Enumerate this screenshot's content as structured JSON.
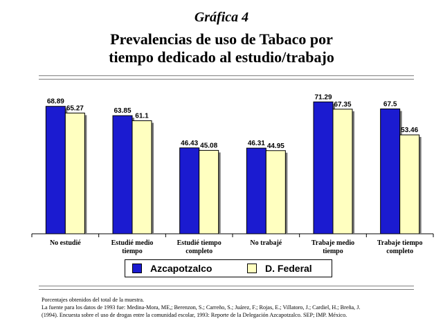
{
  "header": {
    "kicker": "Gráfica 4",
    "title_line1": "Prevalencias de uso de Tabaco por",
    "title_line2": "tiempo dedicado al estudio/trabajo"
  },
  "chart_data": {
    "type": "bar",
    "categories": [
      [
        "No estudié"
      ],
      [
        "Estudié medio",
        "tiempo"
      ],
      [
        "Estudié tiempo",
        "completo"
      ],
      [
        "No trabajé"
      ],
      [
        "Trabaje medio",
        "tiempo"
      ],
      [
        "Trabaje tiempo",
        "completo"
      ]
    ],
    "series": [
      {
        "name": "Azcapotzalco",
        "color": "#1b1bd0",
        "values": [
          68.89,
          63.85,
          46.43,
          46.31,
          71.29,
          67.5
        ],
        "labels": [
          "68.89",
          "63.85",
          "46.43",
          "46.31",
          "71.29",
          "67.5"
        ]
      },
      {
        "name": "D. Federal",
        "color": "#ffffc0",
        "values": [
          65.27,
          61.1,
          45.08,
          44.95,
          67.35,
          53.46
        ],
        "labels": [
          "65.27",
          "61.1",
          "45.08",
          "44.95",
          "67.35",
          "53.46"
        ]
      }
    ],
    "ylim": [
      0,
      80
    ],
    "grid": false,
    "legend_position": "bottom"
  },
  "notes": {
    "line1": "Porcentajes obtenidos del total de la muestra.",
    "line2": "La fuente para los datos de 1993 fue: Medina-Mora, ME,; Berenzon, S.; Carreño, S.; Juárez, F.; Rojas, E.; Villatoro, J.; Cardiel, H.; Breña, J.",
    "line3": "(1994). Encuesta sobre el uso de drogas entre la comunidad escolar, 1993: Reporte de la Delegación Azcapotzalco. SEP; IMP. México."
  }
}
